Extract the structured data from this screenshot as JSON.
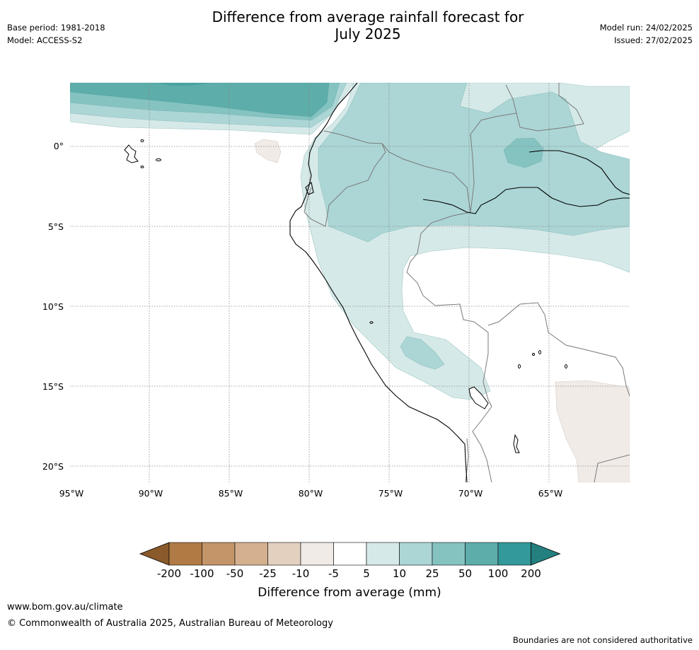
{
  "header": {
    "title_line1": "Difference from average rainfall forecast for",
    "title_line2": "July 2025",
    "base_period": "Base period: 1981-2018",
    "model": "Model: ACCESS-S2",
    "model_run": "Model run: 24/02/2025",
    "issued": "Issued: 27/02/2025"
  },
  "map": {
    "lat_labels": [
      "0°",
      "5°S",
      "10°S",
      "15°S",
      "20°S"
    ],
    "lon_labels": [
      "95°W",
      "90°W",
      "85°W",
      "80°W",
      "75°W",
      "70°W",
      "65°W"
    ]
  },
  "colorbar": {
    "title": "Difference from average (mm)",
    "ticks": [
      "-200",
      "-100",
      "-50",
      "-25",
      "-10",
      "-5",
      "5",
      "10",
      "25",
      "50",
      "100",
      "200"
    ],
    "colors": [
      "#8a5a2b",
      "#b07a44",
      "#c49569",
      "#d4b08f",
      "#e3d0bf",
      "#f1ebe7",
      "#ffffff",
      "#d5e9e8",
      "#abd6d5",
      "#85c3c1",
      "#5dadab",
      "#33999a",
      "#23807f"
    ]
  },
  "footer": {
    "website": "www.bom.gov.au/climate",
    "copyright": "© Commonwealth of Australia 2025, Australian Bureau of Meteorology",
    "disclaimer": "Boundaries are not considered authoritative"
  }
}
